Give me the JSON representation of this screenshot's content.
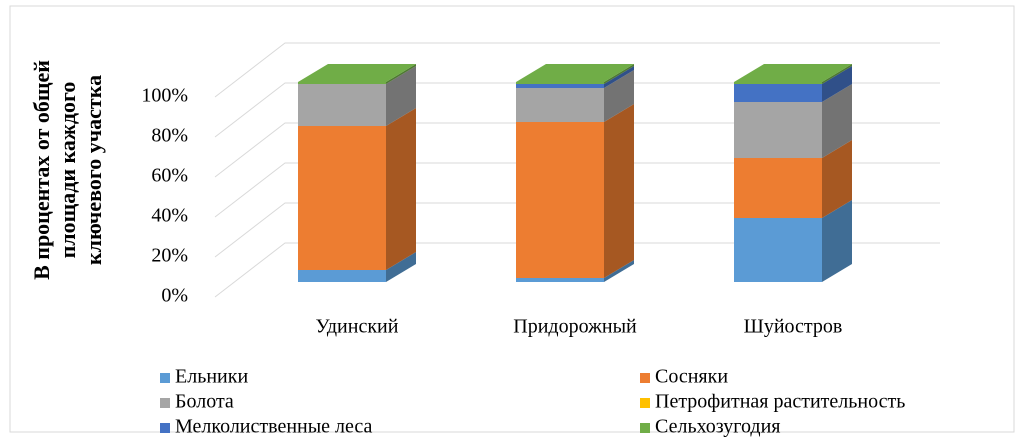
{
  "chart_data": {
    "type": "bar3d_stacked",
    "y_label": "В процентах от общей площади каждого ключевого участка",
    "categories": [
      "Удинский",
      "Придорожный",
      "Шуйостров"
    ],
    "series": [
      {
        "name": "Ельники",
        "color": "#5b9bd5",
        "values": [
          6,
          2,
          32
        ]
      },
      {
        "name": "Сосняки",
        "color": "#ed7d31",
        "values": [
          72,
          78,
          30
        ]
      },
      {
        "name": "Болота",
        "color": "#a5a5a5",
        "values": [
          21,
          17,
          28
        ]
      },
      {
        "name": "Петрофитная растительность",
        "color": "#ffc000",
        "values": [
          0,
          0,
          0
        ]
      },
      {
        "name": "Мелколиственные леса",
        "color": "#4472c4",
        "values": [
          0,
          2,
          9
        ]
      },
      {
        "name": "Сельхозугодия",
        "color": "#70ad47",
        "values": [
          1,
          1,
          1
        ]
      }
    ],
    "ylim": [
      0,
      100
    ],
    "yticks": [
      {
        "value": 0,
        "label": "0%"
      },
      {
        "value": 20,
        "label": "20%"
      },
      {
        "value": 40,
        "label": "40%"
      },
      {
        "value": 60,
        "label": "60%"
      },
      {
        "value": 80,
        "label": "80%"
      },
      {
        "value": 100,
        "label": "100%"
      }
    ],
    "grid": true
  }
}
